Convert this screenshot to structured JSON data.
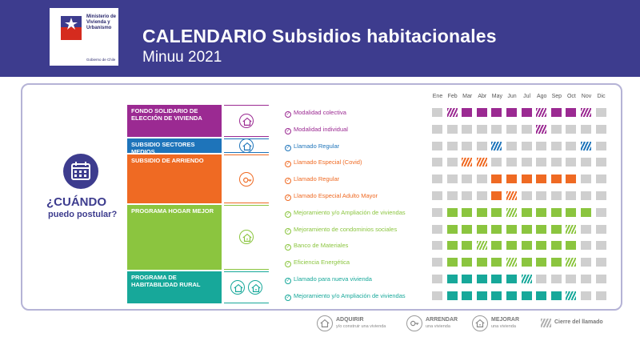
{
  "header": {
    "logo_lines": [
      "Ministerio de",
      "Vivienda y",
      "Urbanismo"
    ],
    "logo_foot": "Gobierno de Chile",
    "title": "CALENDARIO Subsidios habitacionales",
    "subtitle": "Minuu 2021",
    "bg_color": "#3d3c8e"
  },
  "when": {
    "line1": "¿CUÁNDO",
    "line2": "puedo postular?"
  },
  "months": [
    "Ene",
    "Feb",
    "Mar",
    "Abr",
    "May",
    "Jun",
    "Jul",
    "Ago",
    "Sep",
    "Oct",
    "Nov",
    "Dic"
  ],
  "programs": [
    {
      "name": "FONDO SOLIDARIO DE ELECCIÓN DE VIVIENDA",
      "color": "#9b2a92",
      "icons": [
        "house-icon"
      ],
      "rows": [
        {
          "label": "Modalidad colectiva",
          "cells": [
            "g",
            "h",
            "f",
            "f",
            "f",
            "f",
            "f",
            "h",
            "f",
            "f",
            "h",
            "g"
          ]
        },
        {
          "label": "Modalidad individual",
          "cells": [
            "g",
            "g",
            "g",
            "g",
            "g",
            "g",
            "g",
            "h",
            "g",
            "g",
            "g",
            "g"
          ]
        }
      ]
    },
    {
      "name": "SUBSIDIO SECTORES MEDIOS",
      "color": "#1e74ba",
      "icons": [
        "house-icon"
      ],
      "rows": [
        {
          "label": "Llamado Regular",
          "cells": [
            "g",
            "g",
            "g",
            "g",
            "h",
            "g",
            "g",
            "g",
            "g",
            "g",
            "h",
            "g"
          ]
        }
      ]
    },
    {
      "name": "SUBSIDIO DE ARRIENDO",
      "color": "#ef6a23",
      "icons": [
        "key-icon"
      ],
      "rows": [
        {
          "label": "Llamado Especial (Covid)",
          "cells": [
            "g",
            "g",
            "h",
            "h",
            "g",
            "g",
            "g",
            "g",
            "g",
            "g",
            "g",
            "g"
          ]
        },
        {
          "label": "Llamado Regular",
          "cells": [
            "g",
            "g",
            "g",
            "g",
            "f",
            "f",
            "f",
            "f",
            "f",
            "f",
            "g",
            "g"
          ]
        },
        {
          "label": "Llamado Especial Adulto Mayor",
          "cells": [
            "g",
            "g",
            "g",
            "g",
            "f",
            "h",
            "g",
            "g",
            "g",
            "g",
            "g",
            "g"
          ]
        }
      ]
    },
    {
      "name": "PROGRAMA HOGAR MEJOR",
      "color": "#8bc53f",
      "icons": [
        "house-repair-icon"
      ],
      "rows": [
        {
          "label": "Mejoramiento y/o Ampliación de viviendas",
          "cells": [
            "g",
            "f",
            "f",
            "f",
            "f",
            "h",
            "f",
            "f",
            "f",
            "f",
            "f",
            "g"
          ]
        },
        {
          "label": "Mejoramiento de condominios sociales",
          "cells": [
            "g",
            "f",
            "f",
            "f",
            "f",
            "f",
            "f",
            "f",
            "f",
            "h",
            "g",
            "g"
          ]
        },
        {
          "label": "Banco de Materiales",
          "cells": [
            "g",
            "f",
            "f",
            "h",
            "f",
            "f",
            "f",
            "f",
            "f",
            "f",
            "g",
            "g"
          ]
        },
        {
          "label": "Eficiencia Energética",
          "cells": [
            "g",
            "f",
            "f",
            "f",
            "f",
            "h",
            "f",
            "f",
            "f",
            "h",
            "g",
            "g"
          ]
        }
      ]
    },
    {
      "name": "PROGRAMA DE HABITABILIDAD RURAL",
      "color": "#17a89a",
      "icons": [
        "house-icon",
        "house-repair-icon"
      ],
      "rows": [
        {
          "label": "Llamado para nueva vivienda",
          "cells": [
            "g",
            "f",
            "f",
            "f",
            "f",
            "f",
            "h",
            "g",
            "g",
            "g",
            "g",
            "g"
          ]
        },
        {
          "label": "Mejoramiento y/o Ampliación de viviendas",
          "cells": [
            "g",
            "f",
            "f",
            "f",
            "f",
            "f",
            "f",
            "f",
            "f",
            "h",
            "g",
            "g"
          ]
        }
      ]
    }
  ],
  "legend": [
    {
      "title": "ADQUIRIR",
      "sub": "y/o construir una vivienda",
      "icon": "house-icon"
    },
    {
      "title": "ARRENDAR",
      "sub": "una vivienda",
      "icon": "key-icon"
    },
    {
      "title": "MEJORAR",
      "sub": "una vivienda",
      "icon": "house-repair-icon"
    }
  ],
  "legend_closing": "Cierre del llamado",
  "gray_color": "#cfcfcf"
}
